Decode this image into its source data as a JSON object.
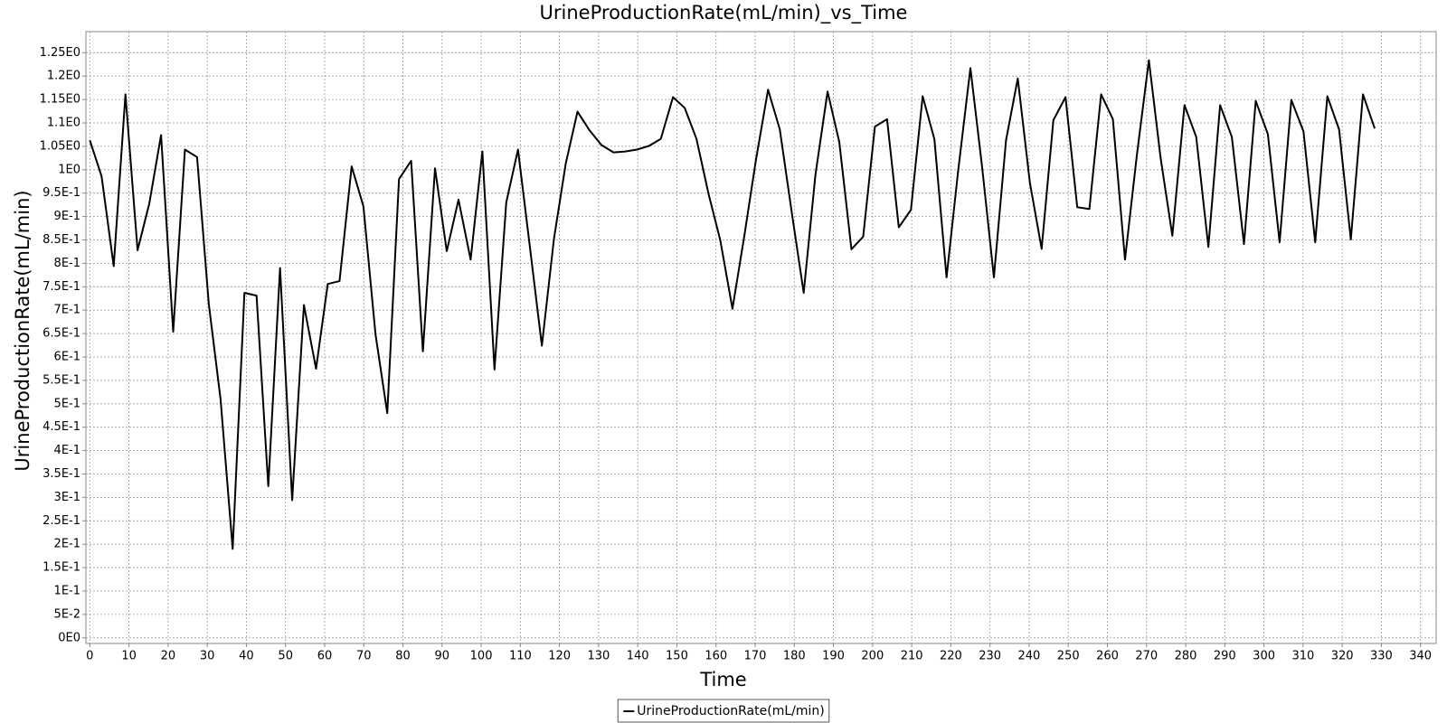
{
  "chart_data": {
    "type": "line",
    "title": "UrineProductionRate(mL/min)_vs_Time",
    "x_label": "Time",
    "y_label": "UrineProductionRate(mL/min)",
    "grid": true,
    "legend": "bottom",
    "xlim": [
      -1,
      344
    ],
    "ylim": [
      -0.012,
      1.295
    ],
    "xticks": [
      0,
      10,
      20,
      30,
      40,
      50,
      60,
      70,
      80,
      90,
      100,
      110,
      120,
      130,
      140,
      150,
      160,
      170,
      180,
      190,
      200,
      210,
      220,
      230,
      240,
      250,
      260,
      270,
      280,
      290,
      300,
      310,
      320,
      330,
      340
    ],
    "yticks": [
      {
        "value": 0,
        "label": "0E0"
      },
      {
        "value": 0.05,
        "label": "5E-2"
      },
      {
        "value": 0.1,
        "label": "1E-1"
      },
      {
        "value": 0.15,
        "label": "1.5E-1"
      },
      {
        "value": 0.2,
        "label": "2E-1"
      },
      {
        "value": 0.25,
        "label": "2.5E-1"
      },
      {
        "value": 0.3,
        "label": "3E-1"
      },
      {
        "value": 0.35,
        "label": "3.5E-1"
      },
      {
        "value": 0.4,
        "label": "4E-1"
      },
      {
        "value": 0.45,
        "label": "4.5E-1"
      },
      {
        "value": 0.5,
        "label": "5E-1"
      },
      {
        "value": 0.55,
        "label": "5.5E-1"
      },
      {
        "value": 0.6,
        "label": "6E-1"
      },
      {
        "value": 0.65,
        "label": "6.5E-1"
      },
      {
        "value": 0.7,
        "label": "7E-1"
      },
      {
        "value": 0.75,
        "label": "7.5E-1"
      },
      {
        "value": 0.8,
        "label": "8E-1"
      },
      {
        "value": 0.85,
        "label": "8.5E-1"
      },
      {
        "value": 0.9,
        "label": "9E-1"
      },
      {
        "value": 0.95,
        "label": "9.5E-1"
      },
      {
        "value": 1,
        "label": "1E0"
      },
      {
        "value": 1.05,
        "label": "1.05E0"
      },
      {
        "value": 1.1,
        "label": "1.1E0"
      },
      {
        "value": 1.15,
        "label": "1.15E0"
      },
      {
        "value": 1.2,
        "label": "1.2E0"
      },
      {
        "value": 1.25,
        "label": "1.25E0"
      }
    ],
    "x": [
      0,
      3.0,
      6.1,
      9.1,
      12.2,
      15.2,
      18.2,
      21.3,
      24.3,
      27.4,
      30.4,
      33.4,
      36.5,
      39.5,
      42.6,
      45.6,
      48.6,
      51.7,
      54.7,
      57.8,
      60.8,
      63.8,
      66.9,
      69.9,
      73.0,
      76.0,
      79.0,
      82.1,
      85.1,
      88.2,
      91.2,
      94.2,
      97.3,
      100.3,
      103.4,
      106.4,
      109.4,
      112.5,
      115.5,
      118.6,
      121.6,
      124.6,
      127.7,
      130.7,
      133.8,
      136.8,
      139.8,
      142.9,
      145.9,
      149.0,
      152.0,
      155.0,
      158.1,
      161.1,
      164.2,
      167.2,
      170.2,
      173.3,
      176.3,
      179.4,
      182.4,
      185.4,
      188.5,
      191.5,
      194.6,
      197.6,
      200.6,
      203.7,
      206.7,
      209.8,
      212.8,
      215.8,
      218.9,
      221.9,
      225.0,
      228.0,
      231.0,
      234.1,
      237.1,
      240.2,
      243.2,
      246.2,
      249.3,
      252.3,
      255.4,
      258.4,
      261.4,
      264.5,
      267.5,
      270.6,
      273.6,
      276.6,
      279.7,
      282.7,
      285.8,
      288.8,
      291.8,
      294.9,
      297.9,
      301.0,
      304.0,
      307.0,
      310.1,
      313.1,
      316.2,
      319.2,
      322.2,
      325.3,
      328.3
    ],
    "series": [
      {
        "name": "UrineProductionRate(mL/min)",
        "color": "#000000",
        "values": [
          1.063,
          0.986,
          0.794,
          1.161,
          0.828,
          0.928,
          1.074,
          0.654,
          1.043,
          1.027,
          0.713,
          0.51,
          0.19,
          0.737,
          0.731,
          0.324,
          0.79,
          0.294,
          0.711,
          0.575,
          0.756,
          0.762,
          1.007,
          0.922,
          0.648,
          0.48,
          0.98,
          1.019,
          0.612,
          1.003,
          0.826,
          0.936,
          0.808,
          1.039,
          0.573,
          0.93,
          1.043,
          0.831,
          0.624,
          0.853,
          1.013,
          1.124,
          1.084,
          1.053,
          1.037,
          1.039,
          1.043,
          1.051,
          1.066,
          1.155,
          1.132,
          1.066,
          0.948,
          0.849,
          0.703,
          0.857,
          1.021,
          1.171,
          1.086,
          0.906,
          0.737,
          0.989,
          1.167,
          1.059,
          0.83,
          0.857,
          1.092,
          1.108,
          0.877,
          0.914,
          1.157,
          1.065,
          0.77,
          1.0,
          1.217,
          1.005,
          0.77,
          1.063,
          1.195,
          0.972,
          0.831,
          1.106,
          1.155,
          0.92,
          0.916,
          1.161,
          1.108,
          0.808,
          1.029,
          1.234,
          1.025,
          0.859,
          1.138,
          1.07,
          0.835,
          1.138,
          1.07,
          0.841,
          1.147,
          1.076,
          0.845,
          1.149,
          1.082,
          0.845,
          1.157,
          1.086,
          0.851,
          1.161,
          1.088
        ]
      }
    ]
  }
}
